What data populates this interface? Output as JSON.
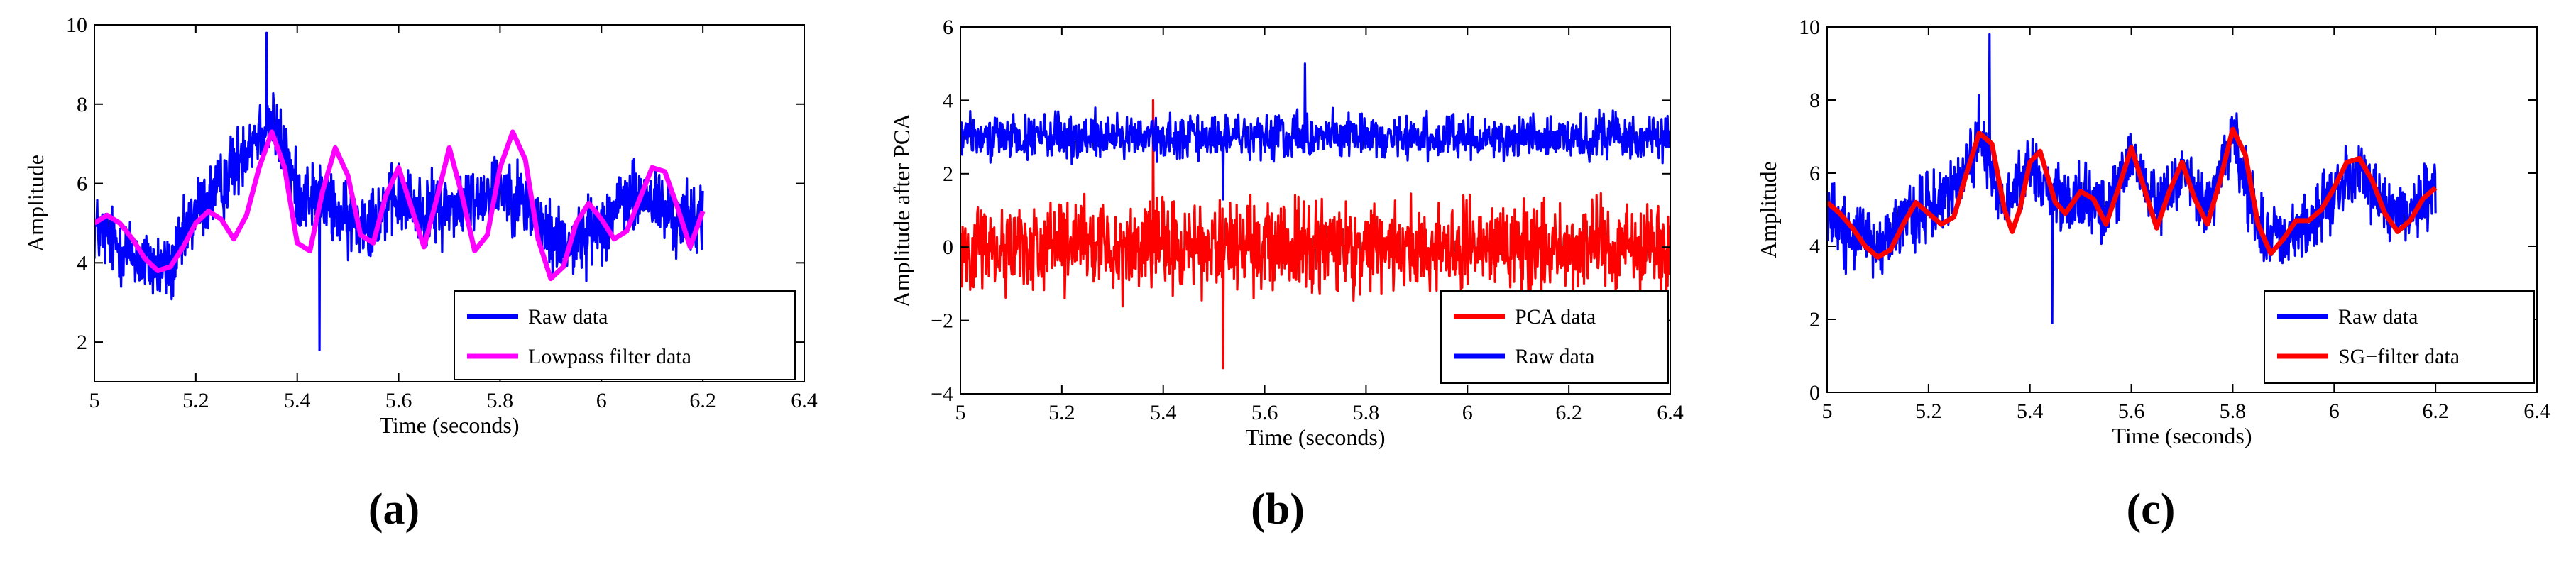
{
  "chart_data": [
    {
      "type": "line",
      "caption": "(a)",
      "xlabel": "Time (seconds)",
      "ylabel": "Amplitude",
      "xlim": [
        5,
        6.4
      ],
      "ylim": [
        1,
        10
      ],
      "xticks": [
        5,
        5.2,
        5.4,
        5.6,
        5.8,
        6,
        6.2,
        6.4
      ],
      "xtick_labels": [
        "5",
        "5.2",
        "5.4",
        "5.6",
        "5.8",
        "6",
        "6.2",
        "6.4"
      ],
      "yticks": [
        2,
        4,
        6,
        8,
        10
      ],
      "ytick_labels": [
        "2",
        "4",
        "6",
        "8",
        "10"
      ],
      "legend_position": "bottom-right",
      "series": [
        {
          "name": "Raw data",
          "color": "#0000ff",
          "kind": "noisy",
          "x_range": [
            5,
            6.2
          ],
          "baseline": [
            [
              5,
              4.9
            ],
            [
              5.05,
              4.4
            ],
            [
              5.1,
              4.0
            ],
            [
              5.15,
              3.8
            ],
            [
              5.2,
              5.3
            ],
            [
              5.25,
              5.9
            ],
            [
              5.3,
              7.0
            ],
            [
              5.35,
              7.6
            ],
            [
              5.4,
              5.8
            ],
            [
              5.45,
              5.6
            ],
            [
              5.5,
              5.0
            ],
            [
              5.55,
              5.2
            ],
            [
              5.6,
              5.6
            ],
            [
              5.65,
              5.3
            ],
            [
              5.7,
              5.4
            ],
            [
              5.75,
              5.6
            ],
            [
              5.8,
              6.0
            ],
            [
              5.85,
              5.5
            ],
            [
              5.9,
              4.6
            ],
            [
              5.95,
              4.5
            ],
            [
              6,
              5.0
            ],
            [
              6.05,
              5.6
            ],
            [
              6.1,
              5.6
            ],
            [
              6.15,
              5.0
            ],
            [
              6.2,
              5.2
            ]
          ],
          "noise_amplitude": 1.3,
          "peak_x": 5.34,
          "peak_y": 9.8,
          "min_y": 1.8
        },
        {
          "name": "Lowpass filter data",
          "color": "#ff00ff",
          "kind": "smooth",
          "points": [
            [
              5,
              5.0
            ],
            [
              5.025,
              5.2
            ],
            [
              5.05,
              5.0
            ],
            [
              5.075,
              4.6
            ],
            [
              5.1,
              4.1
            ],
            [
              5.125,
              3.8
            ],
            [
              5.15,
              3.9
            ],
            [
              5.175,
              4.4
            ],
            [
              5.2,
              5.0
            ],
            [
              5.225,
              5.3
            ],
            [
              5.25,
              5.1
            ],
            [
              5.275,
              4.6
            ],
            [
              5.3,
              5.2
            ],
            [
              5.325,
              6.4
            ],
            [
              5.35,
              7.3
            ],
            [
              5.375,
              6.4
            ],
            [
              5.4,
              4.5
            ],
            [
              5.425,
              4.3
            ],
            [
              5.45,
              5.8
            ],
            [
              5.475,
              6.9
            ],
            [
              5.5,
              6.2
            ],
            [
              5.525,
              4.7
            ],
            [
              5.55,
              4.5
            ],
            [
              5.575,
              5.7
            ],
            [
              5.6,
              6.4
            ],
            [
              5.625,
              5.4
            ],
            [
              5.65,
              4.4
            ],
            [
              5.675,
              5.6
            ],
            [
              5.7,
              6.9
            ],
            [
              5.725,
              5.7
            ],
            [
              5.75,
              4.3
            ],
            [
              5.775,
              4.7
            ],
            [
              5.8,
              6.4
            ],
            [
              5.825,
              7.3
            ],
            [
              5.85,
              6.6
            ],
            [
              5.875,
              4.6
            ],
            [
              5.9,
              3.6
            ],
            [
              5.925,
              3.9
            ],
            [
              5.95,
              5.0
            ],
            [
              5.975,
              5.5
            ],
            [
              6,
              5.1
            ],
            [
              6.025,
              4.6
            ],
            [
              6.05,
              4.8
            ],
            [
              6.075,
              5.6
            ],
            [
              6.1,
              6.4
            ],
            [
              6.125,
              6.3
            ],
            [
              6.15,
              5.4
            ],
            [
              6.175,
              4.4
            ],
            [
              6.2,
              5.3
            ]
          ]
        }
      ]
    },
    {
      "type": "line",
      "caption": "(b)",
      "xlabel": "Time (seconds)",
      "ylabel": "Amplitude after PCA",
      "xlim": [
        5,
        6.4
      ],
      "ylim": [
        -4,
        6
      ],
      "xticks": [
        5,
        5.2,
        5.4,
        5.6,
        5.8,
        6,
        6.2,
        6.4
      ],
      "xtick_labels": [
        "5",
        "5.2",
        "5.4",
        "5.6",
        "5.8",
        "6",
        "6.2",
        "6.4"
      ],
      "yticks": [
        -4,
        -2,
        0,
        2,
        4,
        6
      ],
      "ytick_labels": [
        "−4",
        "−2",
        "0",
        "2",
        "4",
        "6"
      ],
      "legend_position": "bottom-right",
      "series": [
        {
          "name": "PCA data",
          "color": "#ff0000",
          "kind": "noisy",
          "x_range": [
            5,
            6.4
          ],
          "baseline": [
            [
              5,
              0.0
            ],
            [
              6.4,
              0.0
            ]
          ],
          "noise_amplitude": 1.75,
          "peak_x": 5.38,
          "peak_y": 4.0,
          "min_y": -3.3
        },
        {
          "name": "Raw data",
          "color": "#0000ff",
          "kind": "noisy",
          "x_range": [
            5,
            6.4
          ],
          "baseline": [
            [
              5,
              3.0
            ],
            [
              6.4,
              3.0
            ]
          ],
          "noise_amplitude": 0.85,
          "peak_x": 5.68,
          "peak_y": 5.0,
          "min_y": 1.3
        }
      ]
    },
    {
      "type": "line",
      "caption": "(c)",
      "xlabel": "Time (seconds)",
      "ylabel": "Amplitude",
      "xlim": [
        5,
        6.4
      ],
      "ylim": [
        0,
        10
      ],
      "xticks": [
        5,
        5.2,
        5.4,
        5.6,
        5.8,
        6,
        6.2,
        6.4
      ],
      "xtick_labels": [
        "5",
        "5.2",
        "5.4",
        "5.6",
        "5.8",
        "6",
        "6.2",
        "6.4"
      ],
      "yticks": [
        0,
        2,
        4,
        6,
        8,
        10
      ],
      "ytick_labels": [
        "0",
        "2",
        "4",
        "6",
        "8",
        "10"
      ],
      "legend_position": "bottom-right",
      "series": [
        {
          "name": "Raw data",
          "color": "#0000ff",
          "kind": "noisy",
          "x_range": [
            5,
            6.2
          ],
          "baseline": [
            [
              5,
              4.9
            ],
            [
              5.05,
              4.3
            ],
            [
              5.1,
              3.9
            ],
            [
              5.15,
              4.6
            ],
            [
              5.2,
              5.0
            ],
            [
              5.25,
              5.5
            ],
            [
              5.3,
              7.0
            ],
            [
              5.35,
              5.0
            ],
            [
              5.4,
              6.3
            ],
            [
              5.45,
              5.2
            ],
            [
              5.5,
              5.3
            ],
            [
              5.55,
              5.0
            ],
            [
              5.6,
              6.4
            ],
            [
              5.65,
              5.0
            ],
            [
              5.7,
              6.0
            ],
            [
              5.75,
              5.0
            ],
            [
              5.8,
              7.0
            ],
            [
              5.85,
              4.5
            ],
            [
              5.9,
              4.2
            ],
            [
              5.95,
              4.6
            ],
            [
              6,
              5.4
            ],
            [
              6.05,
              6.2
            ],
            [
              6.1,
              5.0
            ],
            [
              6.15,
              5.0
            ],
            [
              6.2,
              5.5
            ]
          ],
          "noise_amplitude": 1.3,
          "peak_x": 5.32,
          "peak_y": 9.8,
          "min_y": 1.9
        },
        {
          "name": "SG−filter data",
          "color": "#ff0000",
          "kind": "smooth",
          "points": [
            [
              5,
              5.2
            ],
            [
              5.025,
              4.9
            ],
            [
              5.05,
              4.5
            ],
            [
              5.075,
              4.0
            ],
            [
              5.1,
              3.7
            ],
            [
              5.125,
              3.9
            ],
            [
              5.15,
              4.6
            ],
            [
              5.175,
              5.2
            ],
            [
              5.2,
              4.9
            ],
            [
              5.225,
              4.6
            ],
            [
              5.25,
              4.8
            ],
            [
              5.275,
              6.0
            ],
            [
              5.3,
              7.1
            ],
            [
              5.325,
              6.8
            ],
            [
              5.35,
              5.0
            ],
            [
              5.365,
              4.4
            ],
            [
              5.38,
              5.0
            ],
            [
              5.4,
              6.3
            ],
            [
              5.42,
              6.6
            ],
            [
              5.45,
              5.2
            ],
            [
              5.47,
              4.9
            ],
            [
              5.5,
              5.5
            ],
            [
              5.525,
              5.3
            ],
            [
              5.55,
              4.6
            ],
            [
              5.575,
              5.6
            ],
            [
              5.6,
              6.7
            ],
            [
              5.625,
              5.6
            ],
            [
              5.65,
              4.5
            ],
            [
              5.675,
              5.5
            ],
            [
              5.7,
              6.3
            ],
            [
              5.725,
              5.3
            ],
            [
              5.75,
              4.6
            ],
            [
              5.775,
              5.8
            ],
            [
              5.8,
              7.2
            ],
            [
              5.825,
              6.5
            ],
            [
              5.85,
              4.6
            ],
            [
              5.875,
              3.8
            ],
            [
              5.9,
              4.2
            ],
            [
              5.925,
              4.7
            ],
            [
              5.95,
              4.7
            ],
            [
              5.975,
              5.0
            ],
            [
              6,
              5.6
            ],
            [
              6.025,
              6.3
            ],
            [
              6.05,
              6.4
            ],
            [
              6.075,
              5.8
            ],
            [
              6.1,
              4.9
            ],
            [
              6.125,
              4.4
            ],
            [
              6.15,
              4.7
            ],
            [
              6.175,
              5.3
            ],
            [
              6.2,
              5.6
            ]
          ]
        }
      ]
    }
  ]
}
